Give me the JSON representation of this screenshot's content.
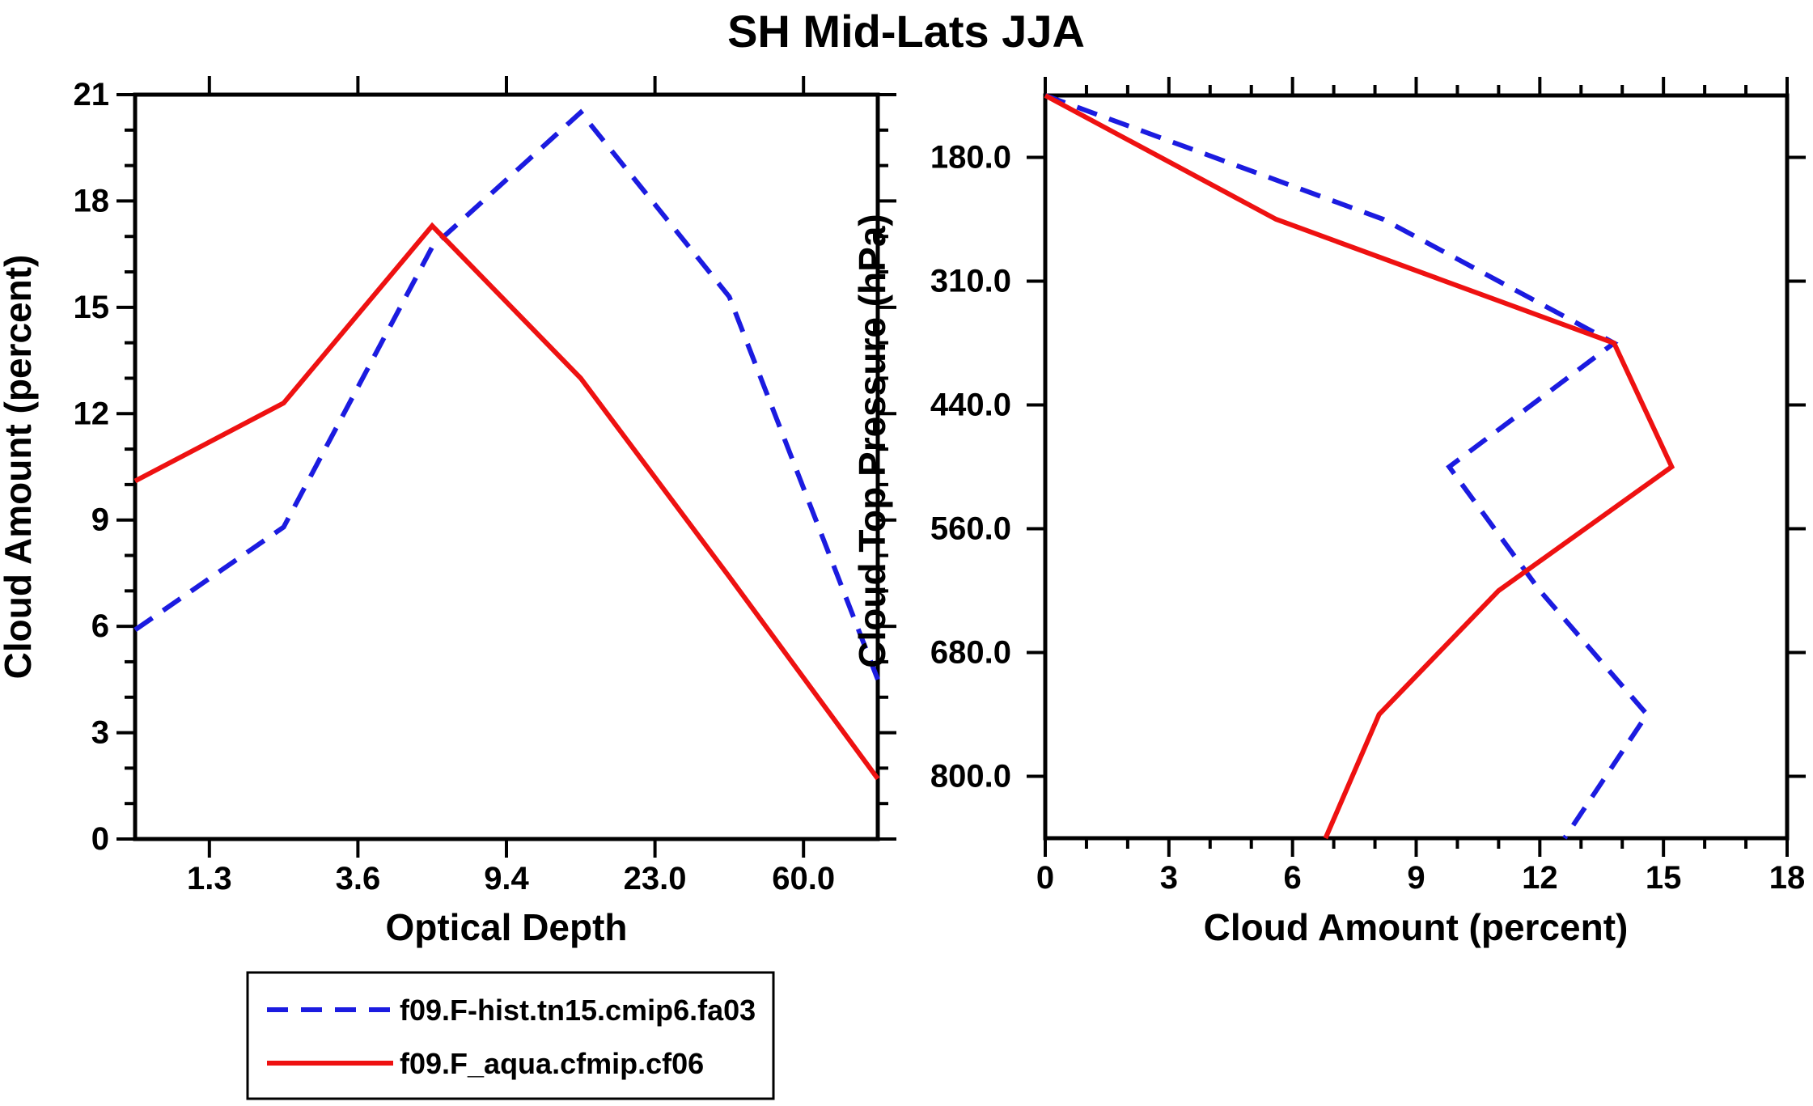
{
  "title": "SH Mid-Lats JJA",
  "colors": {
    "series_blue": "#1b1be0",
    "series_red": "#ee1111",
    "axis": "#000000",
    "background": "#ffffff"
  },
  "legend": {
    "entries": [
      {
        "label": "f09.F-hist.tn15.cmip6.fa03",
        "color": "#1b1be0",
        "style": "dashed"
      },
      {
        "label": "f09.F_aqua.cfmip.cf06",
        "color": "#ee1111",
        "style": "solid"
      }
    ]
  },
  "chart_data": [
    {
      "id": "left-panel",
      "type": "line",
      "title": "SH Mid-Lats JJA",
      "xlabel": "Optical Depth",
      "ylabel": "Cloud Amount (percent)",
      "x_tick_labels": [
        "1.3",
        "3.6",
        "9.4",
        "23.0",
        "60.0"
      ],
      "x_axis_note": "ticks mark optical-depth bin boundaries; the 6 data points sit at bin centers spanning the full axis",
      "ylim": [
        0,
        21
      ],
      "y_major_ticks": [
        0,
        3,
        6,
        9,
        12,
        15,
        18,
        21
      ],
      "y_minor_step": 1,
      "legend_position": "below-left",
      "grid": false,
      "series": [
        {
          "name": "f09.F-hist.tn15.cmip6.fa03",
          "style": "dashed",
          "color": "#1b1be0",
          "values": [
            5.9,
            8.8,
            16.7,
            20.5,
            15.3,
            4.5
          ]
        },
        {
          "name": "f09.F_aqua.cfmip.cf06",
          "style": "solid",
          "color": "#ee1111",
          "values": [
            10.1,
            12.3,
            17.3,
            13.0,
            7.4,
            1.7
          ]
        }
      ]
    },
    {
      "id": "right-panel",
      "type": "line",
      "title": "SH Mid-Lats JJA",
      "xlabel": "Cloud Amount (percent)",
      "ylabel": "Cloud Top Pressure (hPa)",
      "xlim": [
        0,
        18
      ],
      "x_major_ticks": [
        0,
        3,
        6,
        9,
        12,
        15,
        18
      ],
      "x_minor_step": 1,
      "y_tick_labels": [
        "180.0",
        "310.0",
        "440.0",
        "560.0",
        "680.0",
        "800.0"
      ],
      "y_axis_note": "ticks mark pressure bin boundaries (hPa), pressure increases downward; the 7 data points sit at bin centers",
      "pressure_levels_hPa": [
        115,
        245,
        375,
        500,
        620,
        740,
        900
      ],
      "grid": false,
      "series": [
        {
          "name": "f09.F-hist.tn15.cmip6.fa03",
          "style": "dashed",
          "color": "#1b1be0",
          "values": [
            0.0,
            8.2,
            13.8,
            9.8,
            12.0,
            14.6,
            12.6
          ]
        },
        {
          "name": "f09.F_aqua.cfmip.cf06",
          "style": "solid",
          "color": "#ee1111",
          "values": [
            0.0,
            5.6,
            13.8,
            15.2,
            11.0,
            8.1,
            6.8
          ]
        }
      ]
    }
  ]
}
